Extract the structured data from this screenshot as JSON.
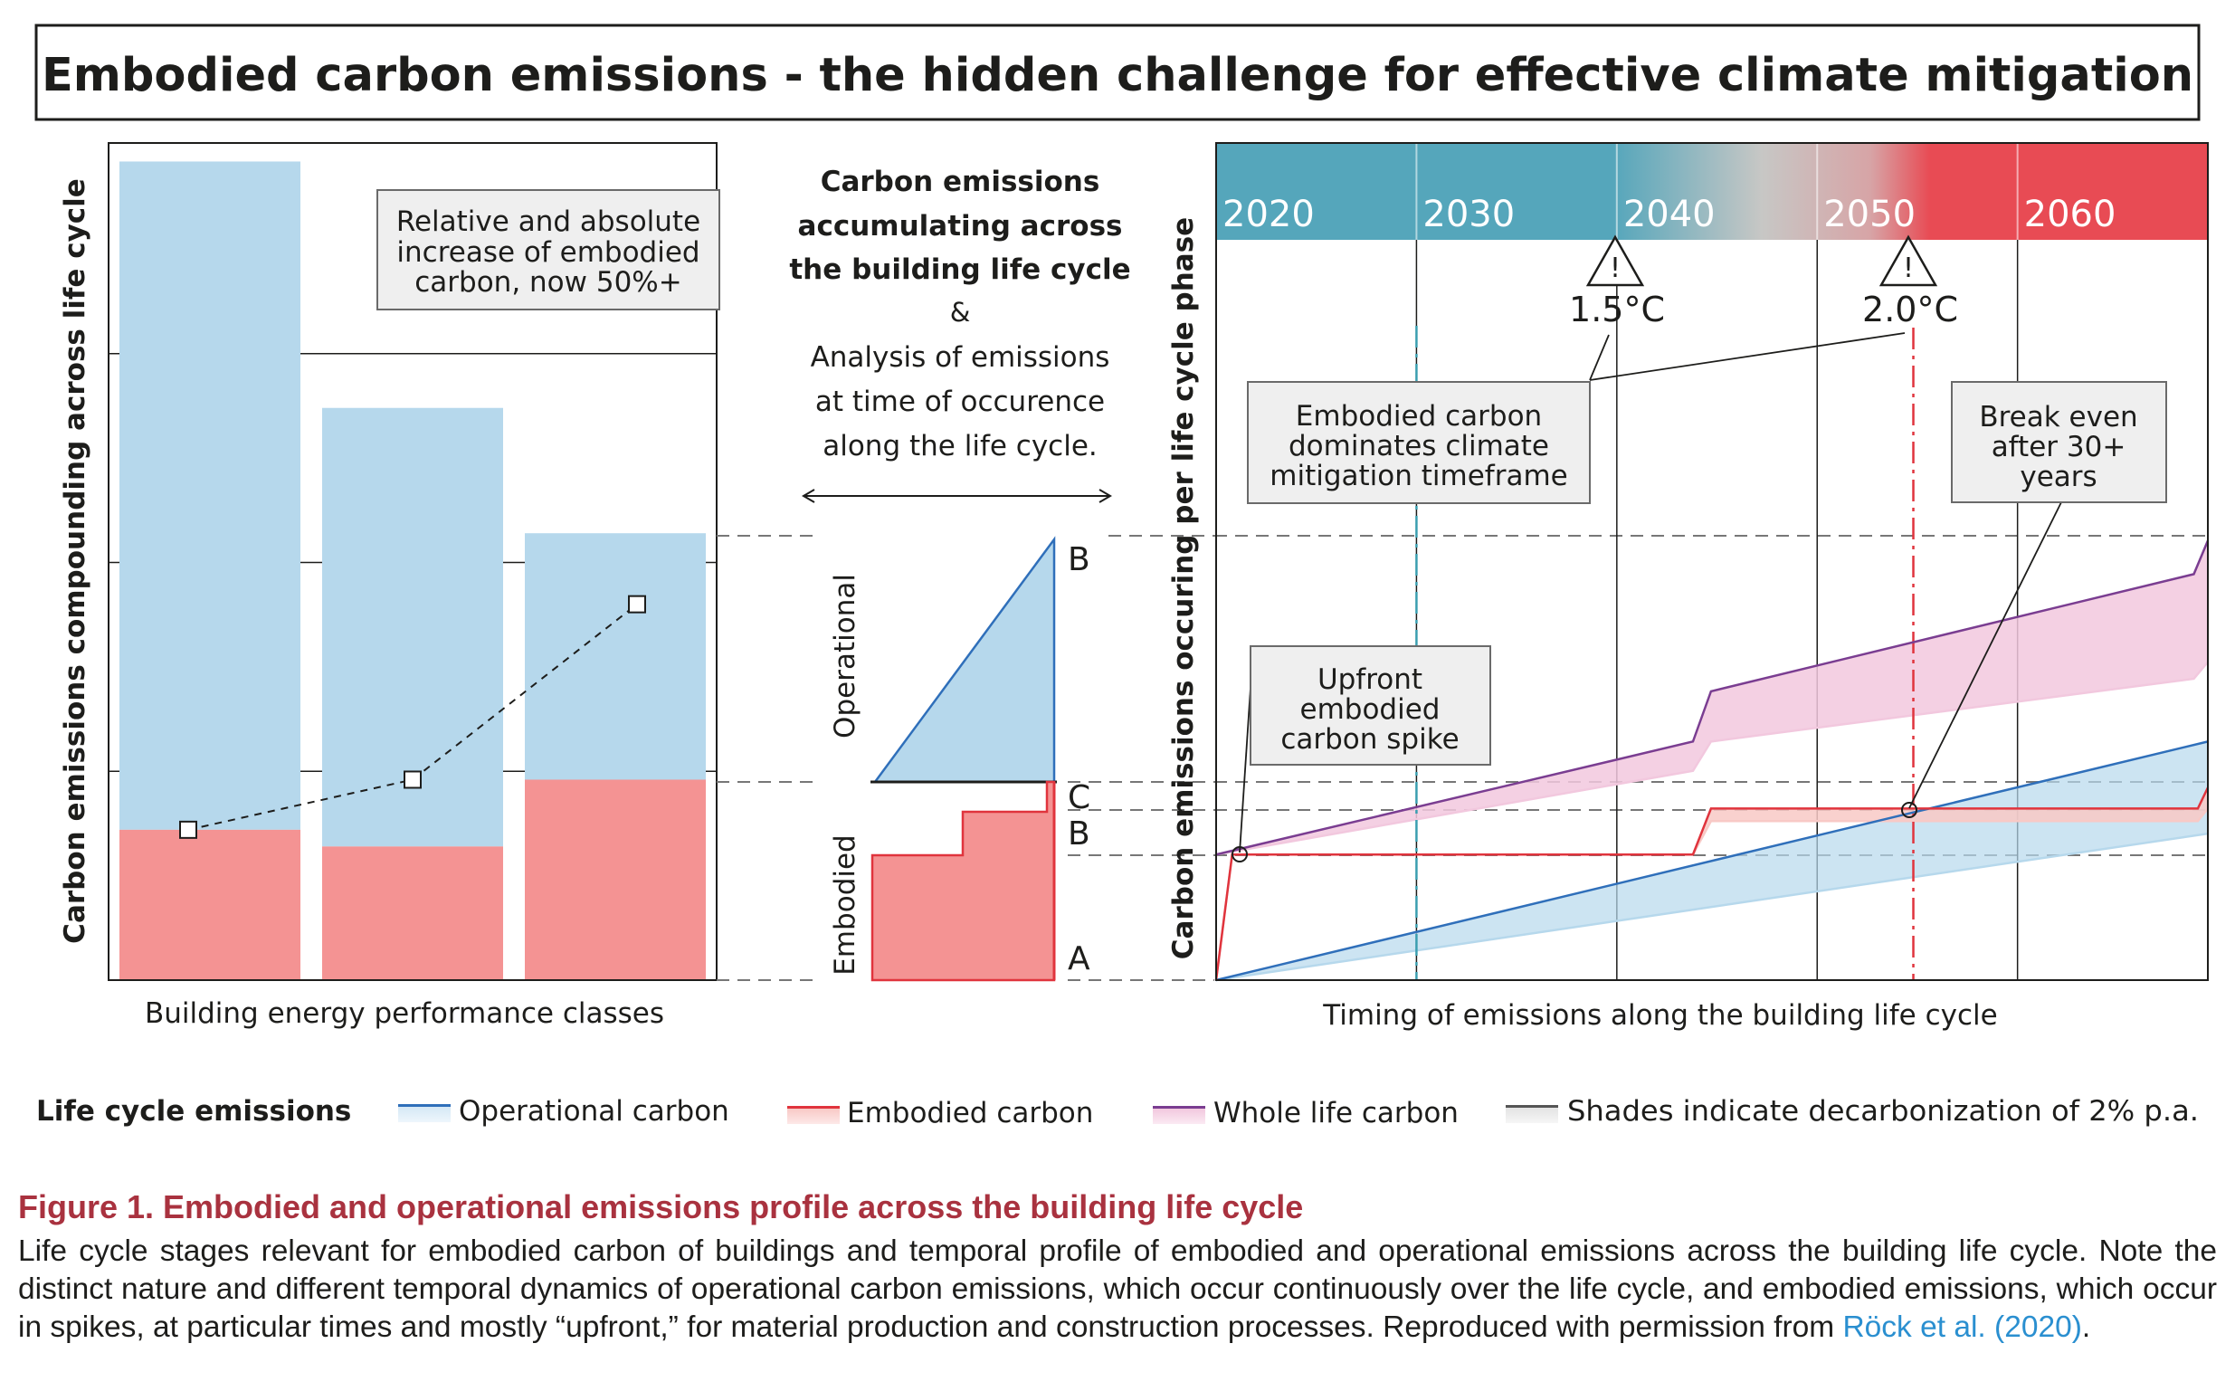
{
  "header": {
    "title": "Embodied carbon emissions - the hidden challenge for effective climate mitigation"
  },
  "left_panel": {
    "y_label": "Carbon emissions compounding across life cycle",
    "x_label": "Building energy performance classes",
    "note": [
      "Relative and absolute",
      "increase of embodied",
      "carbon, now 50%+"
    ]
  },
  "middle_panel": {
    "heading": [
      "Carbon emissions",
      "accumulating across",
      "the building life cycle"
    ],
    "amp": "&",
    "sub": [
      "Analysis of emissions",
      "at time of occurence",
      "along the life cycle."
    ],
    "operational_label": "Operational",
    "embodied_label": "Embodied",
    "marker_b_top": "B",
    "marker_c": "C",
    "marker_b": "B",
    "marker_a": "A"
  },
  "right_panel": {
    "y_label": "Carbon emissions occuring per life cycle phase",
    "x_label": "Timing of emissions along the building life cycle",
    "years": [
      "2020",
      "2030",
      "2040",
      "2050",
      "2060"
    ],
    "warn_symbol": "!",
    "threshold_15": "1.5°C",
    "threshold_20": "2.0°C",
    "callout_dominates": [
      "Embodied carbon",
      "dominates climate",
      "mitigation timeframe"
    ],
    "callout_break_even": [
      "Break even",
      "after 30+",
      "years"
    ],
    "callout_spike": [
      "Upfront",
      "embodied",
      "carbon spike"
    ]
  },
  "legend": {
    "title": "Life cycle emissions",
    "items": [
      {
        "label": "Operational carbon",
        "line_color": "#2f6fba",
        "fill_color": "#d5e8f5"
      },
      {
        "label": "Embodied carbon",
        "line_color": "#e0343d",
        "fill_color": "#f8c9c6"
      },
      {
        "label": "Whole life carbon",
        "line_color": "#7a3d91",
        "fill_color": "#f2c8de"
      },
      {
        "label": "Shades indicate decarbonization of 2% p.a.",
        "line_color": "#555555",
        "fill_color": "#e3e3e3"
      }
    ]
  },
  "caption": {
    "figure_title": "Figure 1.  Embodied and operational emissions profile across the building life cycle",
    "body": "Life cycle stages relevant for embodied carbon of buildings and temporal profile of embodied and operational emissions across the building life cycle. Note the distinct nature and different temporal dynamics of operational carbon emissions, which occur continuously over the life cycle, and embodied emissions, which occur in spikes, at particular times and mostly “upfront,” for material production and construction processes. Reproduced with permission from ",
    "ref": "Röck et al. (2020)",
    "end": "."
  },
  "colors": {
    "operational": "#2f6fba",
    "operational_fill": "#b6d8ec",
    "embodied": "#e0343d",
    "embodied_fill": "#f49393",
    "whole_life": "#7a3d91",
    "whole_life_fill": "#f2c8de",
    "timeline_teal": "#55a6bb",
    "timeline_red": "#e84b54"
  },
  "chart_data": [
    {
      "type": "bar",
      "title": "",
      "xlabel": "Building energy performance classes",
      "ylabel": "Carbon emissions compounding across life cycle",
      "categories": [
        "",
        "",
        ""
      ],
      "ylim": [
        0,
        100
      ],
      "series": [
        {
          "name": "Embodied carbon",
          "values": [
            18,
            16,
            24
          ]
        },
        {
          "name": "Operational carbon",
          "values": [
            80,
            52.5,
            29.5
          ]
        }
      ],
      "embodied_share_points": [
        18,
        24,
        45
      ]
    },
    {
      "type": "line",
      "title": "",
      "xlabel": "Timing of emissions along the building life cycle",
      "ylabel": "Carbon emissions occuring per life cycle phase",
      "x_ticks": [
        2020,
        2030,
        2040,
        2050,
        2060
      ],
      "xlim": [
        2020,
        2069.5
      ],
      "ylim": [
        0,
        100
      ],
      "thresholds": [
        {
          "label": "1.5°C",
          "x": 2030
        },
        {
          "label": "2.0°C",
          "x": 2054.8
        }
      ],
      "series": [
        {
          "name": "Operational carbon",
          "x": [
            2020,
            2069.5
          ],
          "y": [
            0,
            28.5
          ],
          "lower_y": [
            0,
            17.5
          ]
        },
        {
          "name": "Embodied carbon",
          "x": [
            2020,
            2020.8,
            2043.8,
            2044.7,
            2069,
            2069.5
          ],
          "y": [
            0,
            15,
            15,
            20.5,
            20.5,
            23
          ],
          "lower_y": [
            0,
            15,
            15,
            19,
            19,
            20.5
          ]
        },
        {
          "name": "Whole life carbon",
          "x": [
            2020,
            2043.8,
            2044.7,
            2068.8,
            2069.5
          ],
          "y": [
            15,
            28.5,
            34.5,
            48.5,
            52.5
          ],
          "lower_y": [
            15,
            25,
            28.5,
            36,
            38
          ]
        }
      ]
    }
  ]
}
